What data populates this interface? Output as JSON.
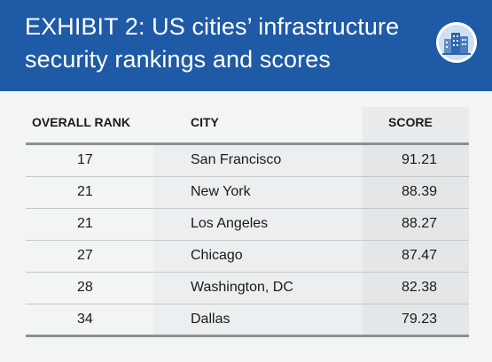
{
  "header": {
    "title": "EXHIBIT 2: US cities’ infrastructure security rankings and scores",
    "logo_icon": "city-buildings-icon",
    "background_color": "#1f5aa6"
  },
  "table": {
    "columns": [
      "OVERALL RANK",
      "CITY",
      "SCORE"
    ],
    "rows": [
      {
        "rank": "17",
        "city": "San Francisco",
        "score": "91.21"
      },
      {
        "rank": "21",
        "city": "New York",
        "score": "88.39"
      },
      {
        "rank": "21",
        "city": "Los Angeles",
        "score": "88.27"
      },
      {
        "rank": "27",
        "city": "Chicago",
        "score": "87.47"
      },
      {
        "rank": "28",
        "city": "Washington, DC",
        "score": "82.38"
      },
      {
        "rank": "34",
        "city": "Dallas",
        "score": "79.23"
      }
    ]
  }
}
